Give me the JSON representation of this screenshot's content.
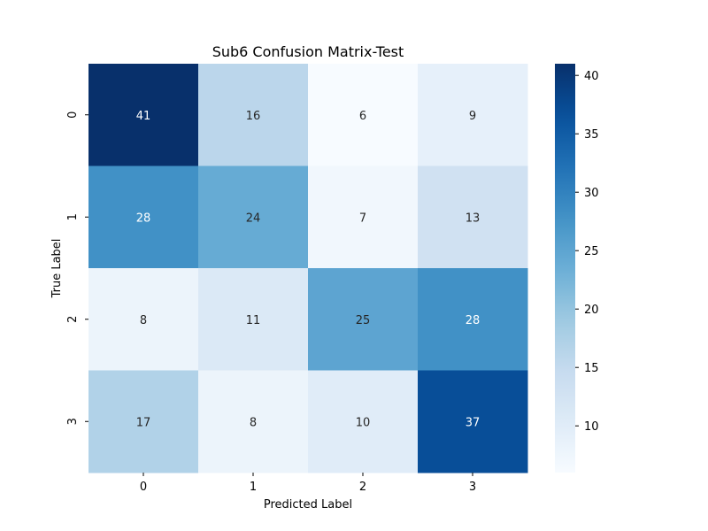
{
  "chart_data": {
    "type": "heatmap",
    "title": "Sub6 Confusion Matrix-Test",
    "xlabel": "Predicted Label",
    "ylabel": "True Label",
    "x_categories": [
      "0",
      "1",
      "2",
      "3"
    ],
    "y_categories": [
      "0",
      "1",
      "2",
      "3"
    ],
    "values": [
      [
        41,
        16,
        6,
        9
      ],
      [
        28,
        24,
        7,
        13
      ],
      [
        8,
        11,
        25,
        28
      ],
      [
        17,
        8,
        10,
        37
      ]
    ],
    "colormap": "Blues",
    "color_range": [
      6,
      41
    ],
    "colorbar_ticks": [
      10,
      15,
      20,
      25,
      30,
      35,
      40
    ],
    "annotation_colors": {
      "dark_cell": "#ffffff",
      "light_cell": "#262626"
    }
  }
}
